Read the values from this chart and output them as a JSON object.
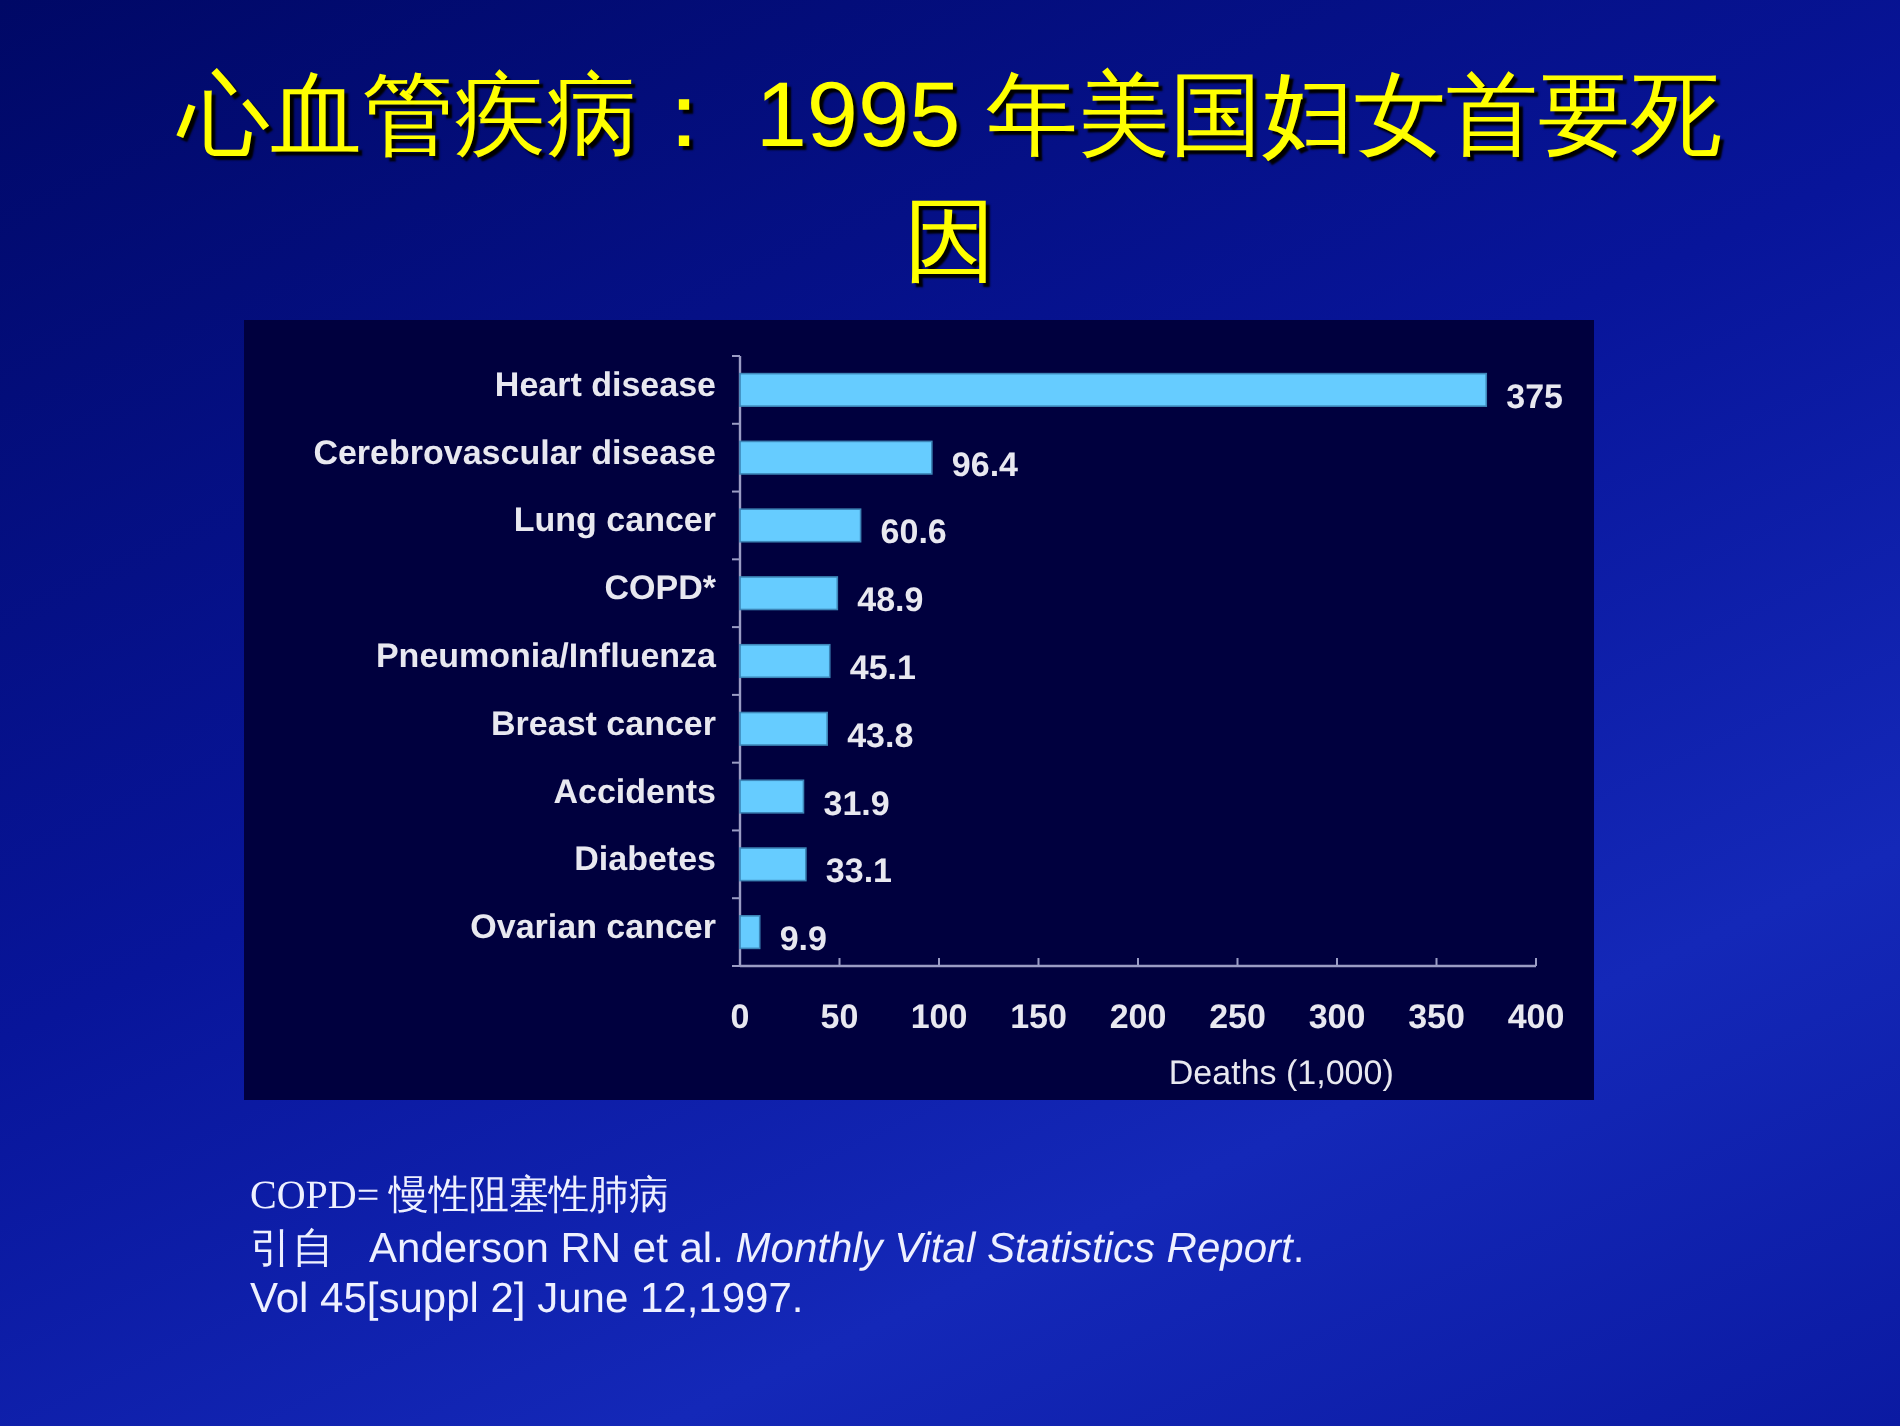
{
  "chart_data": {
    "type": "bar",
    "orientation": "horizontal",
    "title": "心血管疾病： 1995 年美国妇女首要死因",
    "categories": [
      "Heart disease",
      "Cerebrovascular disease",
      "Lung cancer",
      "COPD*",
      "Pneumonia/Influenza",
      "Breast cancer",
      "Accidents",
      "Diabetes",
      "Ovarian cancer"
    ],
    "values": [
      375,
      96.4,
      60.6,
      48.9,
      45.1,
      43.8,
      31.9,
      33.1,
      9.9
    ],
    "color": "#66ccff",
    "xlim": [
      0,
      400
    ],
    "xticks": [
      0,
      50,
      100,
      150,
      200,
      250,
      300,
      350,
      400
    ],
    "xlabel": "Deaths (1,000)",
    "data_labels": true,
    "annotations": [
      "COPD= 慢性阻塞性肺病",
      "引自   Anderson RN et al. *Monthly Vital Statistics Report*.",
      "Vol 45[suppl 2] June 12,1997."
    ]
  }
}
